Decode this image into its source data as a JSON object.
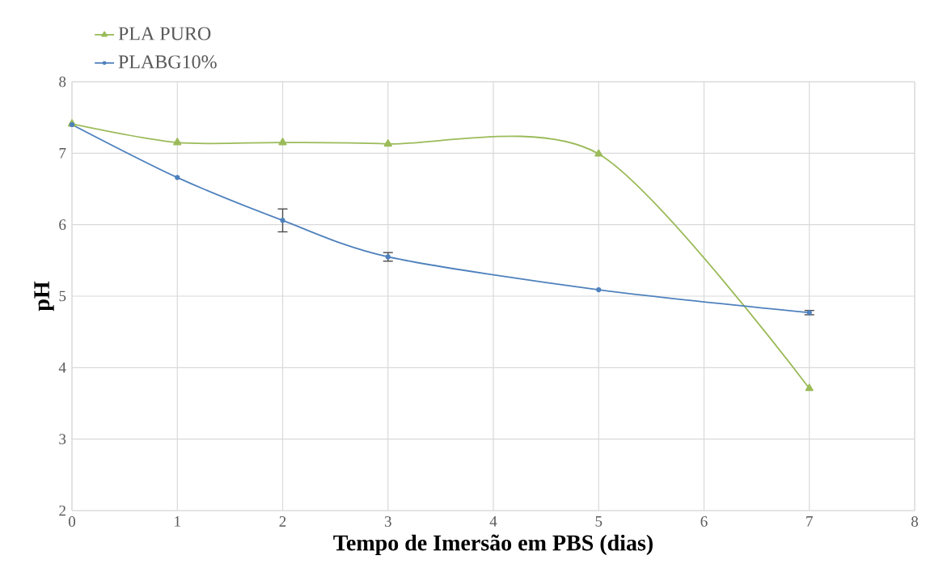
{
  "chart_data": {
    "type": "line",
    "xlabel": "Tempo de Imersão em PBS (dias)",
    "ylabel": "pH",
    "x": [
      0,
      1,
      2,
      3,
      5,
      7
    ],
    "series": [
      {
        "name": "PLA PURO",
        "color": "#9bbb59",
        "marker": "triangle",
        "values": [
          7.41,
          7.15,
          7.15,
          7.13,
          6.99,
          3.71
        ]
      },
      {
        "name": "PLABG10%",
        "color": "#4f81bd",
        "marker": "circle",
        "values": [
          7.4,
          6.66,
          6.06,
          5.55,
          5.09,
          4.77
        ],
        "errors": [
          null,
          null,
          0.16,
          0.06,
          null,
          0.03
        ]
      }
    ],
    "xlim": [
      0,
      8
    ],
    "xticks": [
      0,
      1,
      2,
      3,
      4,
      5,
      6,
      7,
      8
    ],
    "ylim": [
      2,
      8
    ],
    "yticks": [
      2,
      3,
      4,
      5,
      6,
      7,
      8
    ],
    "grid": true,
    "legend": "top left",
    "line_style": "solid"
  }
}
